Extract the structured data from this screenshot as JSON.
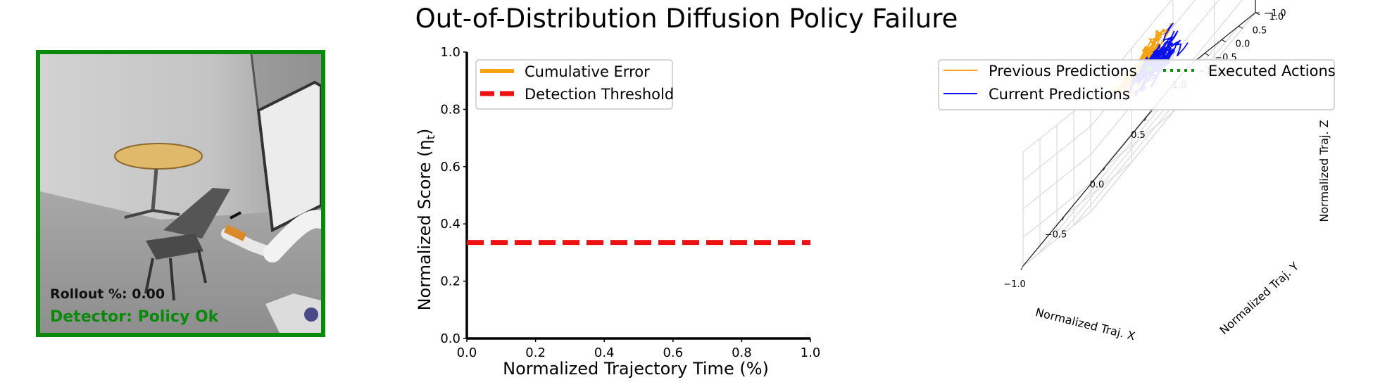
{
  "title": "Out-of-Distribution Diffusion Policy Failure",
  "camera_panel": {
    "rollout_label": "Rollout %: 0.00",
    "detector_label": "Detector: Policy Ok",
    "status_color": "#0a8a0a"
  },
  "chart_data": [
    {
      "type": "line",
      "xlabel": "Normalized Trajectory Time (%)",
      "ylabel": "Normalized Score (η",
      "ylabel_sub": "t",
      "ylabel_close": ")",
      "xlim": [
        0,
        1
      ],
      "ylim": [
        0,
        1
      ],
      "xticks": [
        "0.0",
        "0.2",
        "0.4",
        "0.6",
        "0.8",
        "1.0"
      ],
      "yticks": [
        "0.0",
        "0.2",
        "0.4",
        "0.6",
        "0.8",
        "1.0"
      ],
      "legend_position": "top-left",
      "series": [
        {
          "name": "Cumulative Error",
          "color": "#f5a312",
          "style": "solid",
          "x": [],
          "y": []
        },
        {
          "name": "Detection Threshold",
          "color": "#ee1111",
          "style": "dashed",
          "x": [
            0,
            1
          ],
          "y": [
            0.335,
            0.335
          ]
        }
      ]
    },
    {
      "type": "scatter",
      "projection": "3d",
      "xlabel": "Normalized Traj. X",
      "ylabel": "Normalized Traj. Y",
      "zlabel": "Normalized Traj. Z",
      "xlim": [
        -1,
        1
      ],
      "ylim": [
        -1,
        1
      ],
      "zlim": [
        -1,
        1
      ],
      "x_ticks": [
        "−1.0",
        "−0.5",
        "0.0",
        "0.5",
        "1.0"
      ],
      "y_ticks": [
        "−1.0",
        "−0.5",
        "0.0",
        "0.5",
        "1.0"
      ],
      "z_ticks": [
        "1.0",
        "0.5",
        "0.0",
        "−0.5",
        "−1.0"
      ],
      "legend_position": "top-right",
      "series": [
        {
          "name": "Previous Predictions",
          "color": "#f5a312",
          "style": "solid",
          "center": [
            -0.05,
            0.35,
            0.35
          ],
          "spread": 0.3
        },
        {
          "name": "Current Predictions",
          "color": "#0a10ee",
          "style": "solid",
          "center": [
            0.15,
            0.25,
            0.05
          ],
          "spread": 0.28
        },
        {
          "name": "Executed Actions",
          "color": "#0a8a0a",
          "style": "dotted",
          "points": [
            [
              0.0,
              0.3,
              0.1
            ]
          ]
        }
      ]
    }
  ]
}
